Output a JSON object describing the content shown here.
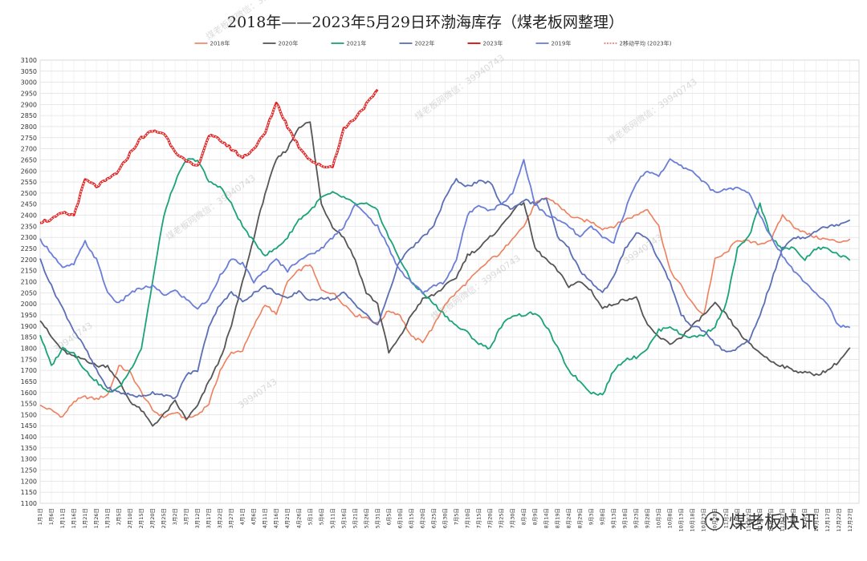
{
  "chart_data": {
    "type": "line",
    "title": "2018年——2023年5月29日环渤海库存（煤老板网整理）",
    "xlabel": "",
    "ylabel": "",
    "ylim": [
      1100,
      3100
    ],
    "ytick_step": 50,
    "grid": true,
    "legend_position": "top",
    "x_ticks": [
      "1月1日",
      "1月6日",
      "1月11日",
      "1月16日",
      "1月21日",
      "1月26日",
      "1月31日",
      "2月5日",
      "2月10日",
      "2月15日",
      "2月20日",
      "2月25日",
      "3月2日",
      "3月7日",
      "3月12日",
      "3月17日",
      "3月22日",
      "3月27日",
      "4月1日",
      "4月6日",
      "4月11日",
      "4月16日",
      "4月21日",
      "4月26日",
      "5月1日",
      "5月6日",
      "5月11日",
      "5月16日",
      "5月21日",
      "5月26日",
      "5月31日",
      "6月5日",
      "6月10日",
      "6月15日",
      "6月20日",
      "6月25日",
      "6月30日",
      "7月5日",
      "7月10日",
      "7月15日",
      "7月20日",
      "7月25日",
      "7月30日",
      "8月4日",
      "8月9日",
      "8月14日",
      "8月19日",
      "8月24日",
      "8月29日",
      "9月3日",
      "9月8日",
      "9月13日",
      "9月18日",
      "9月23日",
      "9月28日",
      "10月3日",
      "10月8日",
      "10月13日",
      "10月18日",
      "10月23日",
      "10月28日",
      "11月2日",
      "11月7日",
      "11月12日",
      "11月17日",
      "11月22日",
      "11月27日",
      "12月2日",
      "12月7日",
      "12月12日",
      "12月17日",
      "12月22日",
      "12月27日"
    ],
    "series": [
      {
        "name": "2018年",
        "color": "#ef7f5c",
        "width": 1.6,
        "y": [
          1540,
          1520,
          1490,
          1560,
          1580,
          1570,
          1590,
          1720,
          1690,
          1600,
          1520,
          1490,
          1510,
          1480,
          1500,
          1550,
          1700,
          1780,
          1790,
          1900,
          2000,
          1950,
          2100,
          2150,
          2180,
          2060,
          2050,
          2000,
          1950,
          1940,
          1910,
          1970,
          1950,
          1850,
          1830,
          1900,
          2000,
          2050,
          2100,
          2150,
          2200,
          2230,
          2300,
          2350,
          2450,
          2480,
          2450,
          2400,
          2380,
          2370,
          2340,
          2350,
          2380,
          2400,
          2430,
          2350,
          2150,
          2080,
          2000,
          1950,
          2200,
          2230,
          2290,
          2280,
          2270,
          2290,
          2400,
          2350,
          2320,
          2300,
          2290,
          2280,
          2290
        ]
      },
      {
        "name": "2020年",
        "color": "#555555",
        "width": 1.8,
        "y": [
          1930,
          1850,
          1790,
          1760,
          1750,
          1720,
          1720,
          1650,
          1560,
          1520,
          1450,
          1500,
          1560,
          1480,
          1540,
          1650,
          1750,
          1900,
          2100,
          2300,
          2500,
          2650,
          2700,
          2800,
          2820,
          2450,
          2350,
          2300,
          2200,
          2050,
          2000,
          1780,
          1850,
          1950,
          2020,
          2040,
          2080,
          2120,
          2220,
          2250,
          2300,
          2350,
          2420,
          2460,
          2250,
          2200,
          2150,
          2080,
          2100,
          2060,
          1980,
          2000,
          2020,
          2030,
          1900,
          1850,
          1820,
          1850,
          1900,
          1950,
          2000,
          1950,
          1880,
          1820,
          1780,
          1740,
          1720,
          1700,
          1690,
          1680,
          1700,
          1740,
          1800
        ]
      },
      {
        "name": "2021年",
        "color": "#1aa37a",
        "width": 1.8,
        "y": [
          1860,
          1720,
          1800,
          1780,
          1700,
          1650,
          1600,
          1620,
          1700,
          1800,
          2100,
          2400,
          2550,
          2650,
          2650,
          2550,
          2530,
          2450,
          2350,
          2280,
          2220,
          2250,
          2300,
          2380,
          2420,
          2480,
          2500,
          2480,
          2450,
          2450,
          2420,
          2300,
          2200,
          2100,
          2050,
          2000,
          1950,
          1900,
          1870,
          1820,
          1800,
          1900,
          1950,
          1950,
          1960,
          1900,
          1800,
          1700,
          1650,
          1600,
          1590,
          1700,
          1750,
          1760,
          1800,
          1880,
          1900,
          1860,
          1850,
          1860,
          1900,
          2000,
          2250,
          2300,
          2450,
          2300,
          2250,
          2250,
          2200,
          2250,
          2250,
          2220,
          2200
        ]
      },
      {
        "name": "2022年",
        "color": "#5a6fb5",
        "width": 1.8,
        "y": [
          2200,
          2080,
          1980,
          1880,
          1800,
          1700,
          1620,
          1600,
          1590,
          1580,
          1600,
          1590,
          1570,
          1680,
          1700,
          1900,
          2000,
          2050,
          2010,
          2050,
          2080,
          2050,
          2020,
          2060,
          2010,
          2030,
          2020,
          2050,
          2000,
          1950,
          1900,
          2050,
          2200,
          2250,
          2300,
          2350,
          2480,
          2560,
          2530,
          2550,
          2550,
          2450,
          2430,
          2470,
          2450,
          2480,
          2300,
          2250,
          2150,
          2100,
          2050,
          2120,
          2250,
          2320,
          2300,
          2200,
          2100,
          1950,
          1900,
          1880,
          1820,
          1780,
          1800,
          1830,
          1950,
          2100,
          2250,
          2300,
          2300,
          2330,
          2350,
          2360,
          2380
        ]
      },
      {
        "name": "2023年",
        "color": "#e02020",
        "width": 3.0,
        "y": [
          2370,
          2380,
          2410,
          2400,
          2560,
          2530,
          2560,
          2600,
          2680,
          2750,
          2780,
          2770,
          2690,
          2640,
          2620,
          2760,
          2740,
          2700,
          2660,
          2700,
          2770,
          2910,
          2800,
          2710,
          2650,
          2620,
          2620,
          2790,
          2840,
          2900,
          2960
        ]
      },
      {
        "name": "2019年",
        "color": "#6a7ed8",
        "width": 1.8,
        "y": [
          2290,
          2230,
          2160,
          2180,
          2280,
          2200,
          2050,
          2000,
          2050,
          2070,
          2080,
          2040,
          2060,
          2020,
          1980,
          2020,
          2130,
          2200,
          2180,
          2100,
          2150,
          2200,
          2150,
          2200,
          2220,
          2250,
          2300,
          2350,
          2450,
          2400,
          2350,
          2250,
          2150,
          2100,
          2050,
          2080,
          2100,
          2200,
          2400,
          2450,
          2420,
          2450,
          2500,
          2650,
          2450,
          2400,
          2380,
          2350,
          2300,
          2350,
          2300,
          2280,
          2420,
          2550,
          2600,
          2580,
          2650,
          2620,
          2600,
          2550,
          2500,
          2520,
          2520,
          2500,
          2400,
          2300,
          2220,
          2150,
          2100,
          2050,
          2000,
          1900,
          1890
        ]
      },
      {
        "name": "2移动平均 (2023年)",
        "color": "#e02020",
        "width": 0.9,
        "dash": "2,1.5",
        "ma_of": "2023年"
      }
    ]
  },
  "watermark": {
    "brand": "煤老板快讯",
    "ghost_marks": [
      "煤老板网微信：39940743",
      "39940743",
      "煤老板网微信：39940743",
      "39940743",
      "煤老板网微信：39940743",
      "煤老板网微信：39940743",
      "煤老板网微信：39940743",
      "39940743"
    ]
  }
}
